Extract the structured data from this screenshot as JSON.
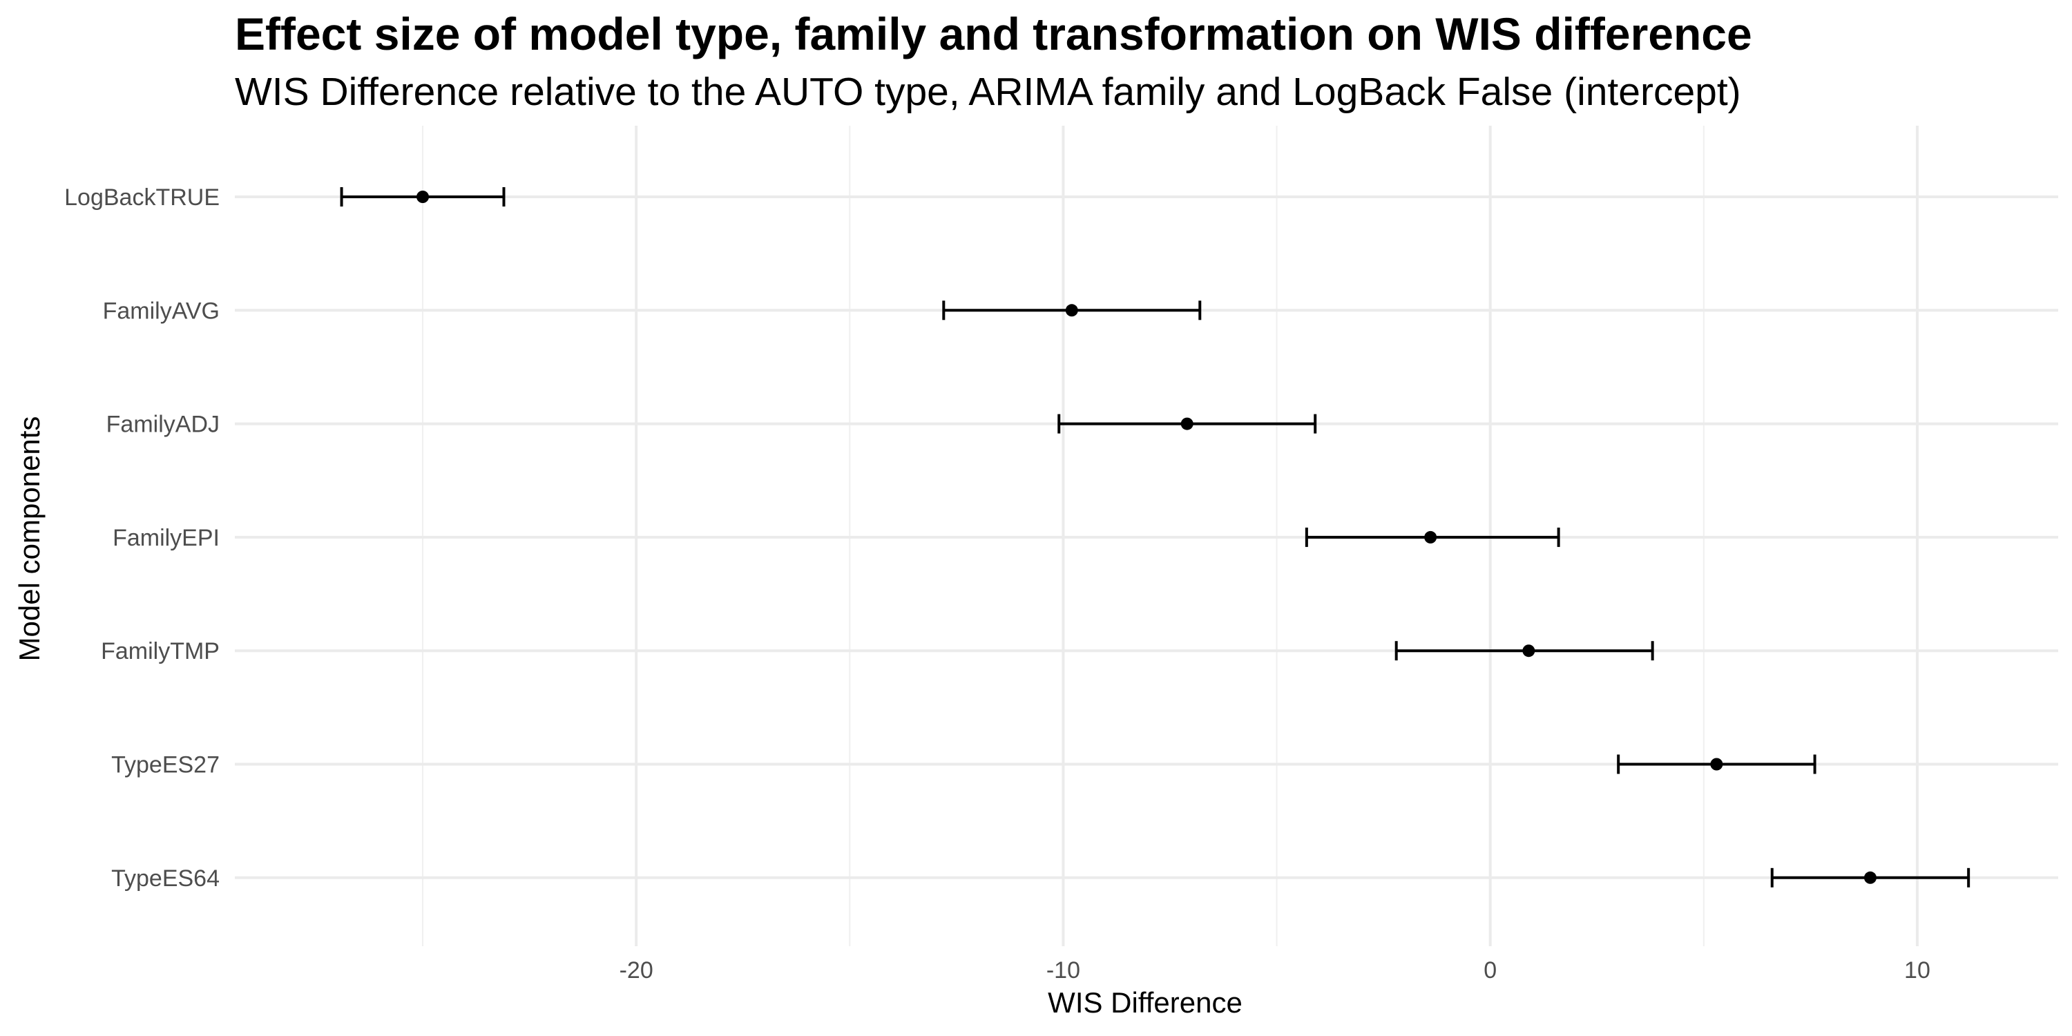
{
  "chart_data": {
    "type": "errorbar",
    "title": "Effect size of model type, family and transformation on WIS difference",
    "subtitle": "WIS Difference relative to the AUTO type, ARIMA family and LogBack False (intercept)",
    "xlabel": "WIS Difference",
    "ylabel": "Model components",
    "xlim": [
      -29.4,
      13.3
    ],
    "x_ticks": [
      -20,
      -10,
      0,
      10
    ],
    "x_tick_labels": [
      "-20",
      "-10",
      "0",
      "10"
    ],
    "x_minor_ticks": [
      -25,
      -15,
      -5,
      5
    ],
    "grid": true,
    "categories": [
      "LogBackTRUE",
      "FamilyAVG",
      "FamilyADJ",
      "FamilyEPI",
      "FamilyTMP",
      "TypeES27",
      "TypeES64"
    ],
    "estimates": [
      -25.0,
      -9.8,
      -7.1,
      -1.4,
      0.9,
      5.3,
      8.9
    ],
    "lower": [
      -26.9,
      -12.8,
      -10.1,
      -4.3,
      -2.2,
      3.0,
      6.6
    ],
    "upper": [
      -23.1,
      -6.8,
      -4.1,
      1.6,
      3.8,
      7.6,
      11.2
    ]
  }
}
